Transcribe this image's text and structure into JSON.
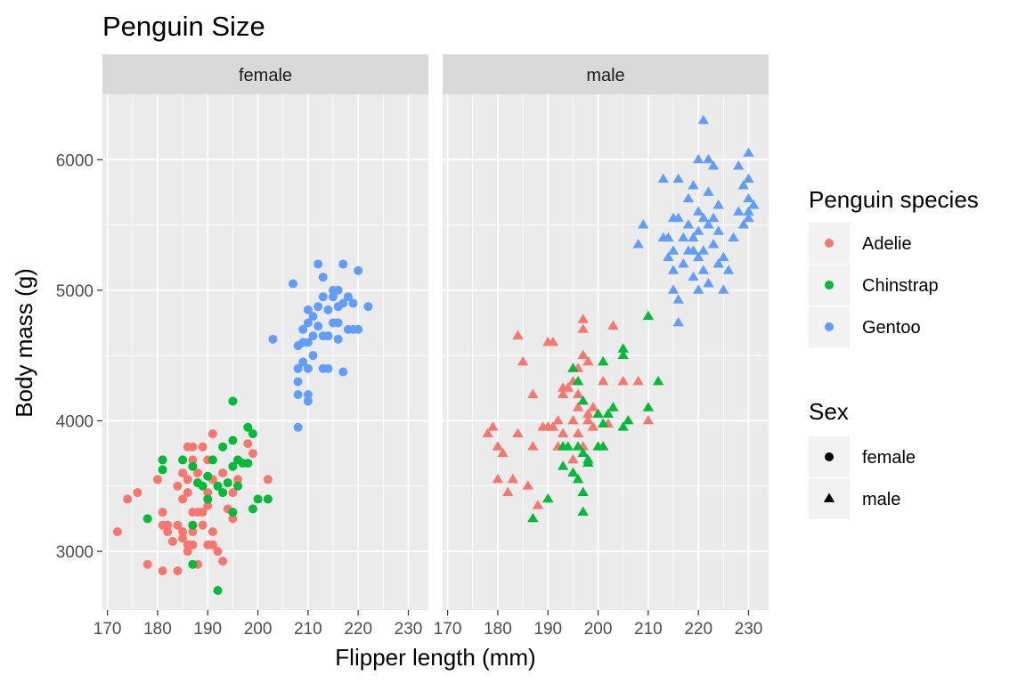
{
  "chart_data": {
    "type": "scatter",
    "title": "Penguin Size",
    "xlabel": "Flipper length (mm)",
    "ylabel": "Body mass (g)",
    "xlim": [
      169,
      234
    ],
    "ylim": [
      2550,
      6500
    ],
    "xticks": [
      170,
      180,
      190,
      200,
      210,
      220,
      230
    ],
    "yticks": [
      3000,
      4000,
      5000,
      6000
    ],
    "grid": true,
    "facets": [
      "female",
      "male"
    ],
    "legend_position": "right",
    "legends": {
      "species": {
        "title": "Penguin species",
        "entries": [
          {
            "label": "Adelie",
            "color": "#F8766D"
          },
          {
            "label": "Chinstrap",
            "color": "#00BA38"
          },
          {
            "label": "Gentoo",
            "color": "#619CFF"
          }
        ]
      },
      "sex": {
        "title": "Sex",
        "entries": [
          {
            "label": "female",
            "shape": "circle"
          },
          {
            "label": "male",
            "shape": "triangle"
          }
        ]
      }
    },
    "series": [
      {
        "name": "Adelie",
        "facet": "female",
        "color": "#F8766D",
        "shape": "circle",
        "points": [
          [
            172,
            3150
          ],
          [
            174,
            3400
          ],
          [
            176,
            3450
          ],
          [
            178,
            2900
          ],
          [
            180,
            3550
          ],
          [
            181,
            2850
          ],
          [
            181,
            3300
          ],
          [
            181,
            3200
          ],
          [
            182,
            3200
          ],
          [
            182,
            3150
          ],
          [
            183,
            3075
          ],
          [
            184,
            3200
          ],
          [
            184,
            2850
          ],
          [
            184,
            3500
          ],
          [
            185,
            3100
          ],
          [
            185,
            3600
          ],
          [
            185,
            3400
          ],
          [
            185,
            3150
          ],
          [
            186,
            3800
          ],
          [
            186,
            3050
          ],
          [
            186,
            3550
          ],
          [
            186,
            3450
          ],
          [
            186,
            3000
          ],
          [
            187,
            3800
          ],
          [
            187,
            3700
          ],
          [
            187,
            3300
          ],
          [
            187,
            3150
          ],
          [
            187,
            3200
          ],
          [
            187,
            3050
          ],
          [
            188,
            3525
          ],
          [
            188,
            3300
          ],
          [
            188,
            2900
          ],
          [
            188,
            3600
          ],
          [
            189,
            3800
          ],
          [
            189,
            3300
          ],
          [
            189,
            3200
          ],
          [
            190,
            3700
          ],
          [
            190,
            3450
          ],
          [
            190,
            3350
          ],
          [
            190,
            3050
          ],
          [
            191,
            3900
          ],
          [
            191,
            3150
          ],
          [
            191,
            3550
          ],
          [
            191,
            3050
          ],
          [
            192,
            3500
          ],
          [
            192,
            3000
          ],
          [
            193,
            2925
          ],
          [
            193,
            3600
          ],
          [
            194,
            3325
          ],
          [
            195,
            3450
          ],
          [
            195,
            3250
          ],
          [
            196,
            3550
          ],
          [
            198,
            3825
          ],
          [
            199,
            3750
          ],
          [
            202,
            3550
          ]
        ]
      },
      {
        "name": "Chinstrap",
        "facet": "female",
        "color": "#00BA38",
        "shape": "circle",
        "points": [
          [
            178,
            3250
          ],
          [
            181,
            3700
          ],
          [
            181,
            3625
          ],
          [
            185,
            3700
          ],
          [
            187,
            3650
          ],
          [
            187,
            3200
          ],
          [
            187,
            2900
          ],
          [
            188,
            3525
          ],
          [
            189,
            3500
          ],
          [
            190,
            3400
          ],
          [
            190,
            3575
          ],
          [
            191,
            3700
          ],
          [
            192,
            3500
          ],
          [
            192,
            2700
          ],
          [
            193,
            3800
          ],
          [
            193,
            3450
          ],
          [
            194,
            3525
          ],
          [
            195,
            4150
          ],
          [
            195,
            3650
          ],
          [
            195,
            3850
          ],
          [
            195,
            3300
          ],
          [
            196,
            3700
          ],
          [
            196,
            3500
          ],
          [
            197,
            3675
          ],
          [
            198,
            3950
          ],
          [
            198,
            3675
          ],
          [
            199,
            3325
          ],
          [
            199,
            3900
          ],
          [
            200,
            3400
          ],
          [
            202,
            3400
          ]
        ]
      },
      {
        "name": "Gentoo",
        "facet": "female",
        "color": "#619CFF",
        "shape": "circle",
        "points": [
          [
            203,
            4625
          ],
          [
            207,
            5050
          ],
          [
            208,
            3950
          ],
          [
            208,
            4575
          ],
          [
            208,
            4400
          ],
          [
            208,
            4200
          ],
          [
            208,
            4300
          ],
          [
            209,
            4600
          ],
          [
            209,
            4450
          ],
          [
            209,
            4700
          ],
          [
            210,
            4750
          ],
          [
            210,
            4600
          ],
          [
            210,
            4400
          ],
          [
            210,
            4850
          ],
          [
            210,
            4200
          ],
          [
            210,
            4150
          ],
          [
            211,
            4800
          ],
          [
            211,
            4500
          ],
          [
            211,
            4650
          ],
          [
            212,
            4875
          ],
          [
            212,
            4725
          ],
          [
            212,
            5200
          ],
          [
            213,
            4950
          ],
          [
            213,
            4650
          ],
          [
            213,
            4400
          ],
          [
            213,
            5100
          ],
          [
            214,
            4850
          ],
          [
            214,
            4650
          ],
          [
            214,
            4400
          ],
          [
            215,
            5000
          ],
          [
            215,
            4750
          ],
          [
            215,
            4950
          ],
          [
            216,
            5000
          ],
          [
            216,
            4750
          ],
          [
            216,
            4625
          ],
          [
            216,
            4875
          ],
          [
            217,
            4375
          ],
          [
            217,
            5200
          ],
          [
            217,
            4900
          ],
          [
            218,
            4950
          ],
          [
            218,
            4700
          ],
          [
            219,
            4700
          ],
          [
            219,
            4900
          ],
          [
            220,
            4700
          ],
          [
            220,
            5150
          ],
          [
            222,
            4875
          ]
        ]
      },
      {
        "name": "Adelie",
        "facet": "male",
        "color": "#F8766D",
        "shape": "triangle",
        "points": [
          [
            178,
            3900
          ],
          [
            179,
            3950
          ],
          [
            180,
            3800
          ],
          [
            180,
            3550
          ],
          [
            181,
            3750
          ],
          [
            182,
            3450
          ],
          [
            183,
            3550
          ],
          [
            184,
            3900
          ],
          [
            184,
            4650
          ],
          [
            185,
            4450
          ],
          [
            186,
            3500
          ],
          [
            187,
            3800
          ],
          [
            187,
            4200
          ],
          [
            188,
            3350
          ],
          [
            189,
            3950
          ],
          [
            190,
            3950
          ],
          [
            190,
            4600
          ],
          [
            191,
            3950
          ],
          [
            191,
            4600
          ],
          [
            192,
            4000
          ],
          [
            192,
            3800
          ],
          [
            193,
            4250
          ],
          [
            193,
            4200
          ],
          [
            193,
            3900
          ],
          [
            194,
            4250
          ],
          [
            195,
            4000
          ],
          [
            195,
            3700
          ],
          [
            195,
            4300
          ],
          [
            196,
            3900
          ],
          [
            196,
            4200
          ],
          [
            196,
            4100
          ],
          [
            196,
            4400
          ],
          [
            197,
            3800
          ],
          [
            197,
            4500
          ],
          [
            197,
            4700
          ],
          [
            197,
            4775
          ],
          [
            198,
            4050
          ],
          [
            198,
            4000
          ],
          [
            198,
            4450
          ],
          [
            199,
            4100
          ],
          [
            199,
            3950
          ],
          [
            200,
            4050
          ],
          [
            201,
            4300
          ],
          [
            202,
            3975
          ],
          [
            203,
            4725
          ],
          [
            205,
            4300
          ],
          [
            208,
            4300
          ],
          [
            210,
            4000
          ]
        ]
      },
      {
        "name": "Chinstrap",
        "facet": "male",
        "color": "#00BA38",
        "shape": "triangle",
        "points": [
          [
            187,
            3250
          ],
          [
            190,
            3400
          ],
          [
            193,
            3800
          ],
          [
            193,
            3650
          ],
          [
            194,
            3800
          ],
          [
            195,
            4400
          ],
          [
            195,
            3600
          ],
          [
            196,
            3550
          ],
          [
            196,
            4300
          ],
          [
            196,
            3800
          ],
          [
            197,
            3450
          ],
          [
            197,
            3300
          ],
          [
            197,
            3750
          ],
          [
            197,
            4150
          ],
          [
            198,
            3700
          ],
          [
            198,
            3675
          ],
          [
            200,
            4050
          ],
          [
            200,
            3800
          ],
          [
            201,
            3800
          ],
          [
            201,
            4450
          ],
          [
            201,
            3975
          ],
          [
            202,
            4050
          ],
          [
            203,
            4100
          ],
          [
            205,
            4550
          ],
          [
            205,
            4500
          ],
          [
            205,
            3950
          ],
          [
            206,
            4000
          ],
          [
            210,
            4800
          ],
          [
            210,
            4100
          ],
          [
            212,
            4300
          ]
        ]
      },
      {
        "name": "Gentoo",
        "facet": "male",
        "color": "#619CFF",
        "shape": "triangle",
        "points": [
          [
            208,
            5350
          ],
          [
            209,
            5500
          ],
          [
            213,
            5400
          ],
          [
            213,
            5850
          ],
          [
            214,
            5250
          ],
          [
            214,
            5400
          ],
          [
            215,
            5550
          ],
          [
            215,
            5300
          ],
          [
            215,
            5150
          ],
          [
            215,
            5000
          ],
          [
            216,
            5550
          ],
          [
            216,
            4925
          ],
          [
            216,
            4750
          ],
          [
            216,
            5850
          ],
          [
            217,
            5400
          ],
          [
            217,
            5200
          ],
          [
            218,
            5300
          ],
          [
            218,
            5700
          ],
          [
            218,
            5500
          ],
          [
            219,
            5400
          ],
          [
            219,
            5800
          ],
          [
            219,
            5300
          ],
          [
            219,
            5100
          ],
          [
            220,
            5450
          ],
          [
            220,
            5250
          ],
          [
            220,
            5000
          ],
          [
            220,
            5600
          ],
          [
            220,
            6000
          ],
          [
            221,
            5300
          ],
          [
            221,
            5550
          ],
          [
            221,
            6300
          ],
          [
            221,
            5150
          ],
          [
            222,
            5500
          ],
          [
            222,
            5750
          ],
          [
            222,
            5050
          ],
          [
            222,
            6000
          ],
          [
            223,
            5550
          ],
          [
            223,
            5350
          ],
          [
            223,
            5950
          ],
          [
            224,
            5650
          ],
          [
            224,
            5200
          ],
          [
            224,
            5450
          ],
          [
            225,
            5250
          ],
          [
            225,
            5000
          ],
          [
            226,
            5150
          ],
          [
            227,
            5400
          ],
          [
            228,
            5600
          ],
          [
            228,
            5950
          ],
          [
            229,
            5500
          ],
          [
            229,
            5800
          ],
          [
            230,
            5700
          ],
          [
            230,
            5600
          ],
          [
            230,
            5850
          ],
          [
            230,
            6050
          ],
          [
            230,
            5550
          ],
          [
            231,
            5650
          ]
        ]
      }
    ]
  }
}
